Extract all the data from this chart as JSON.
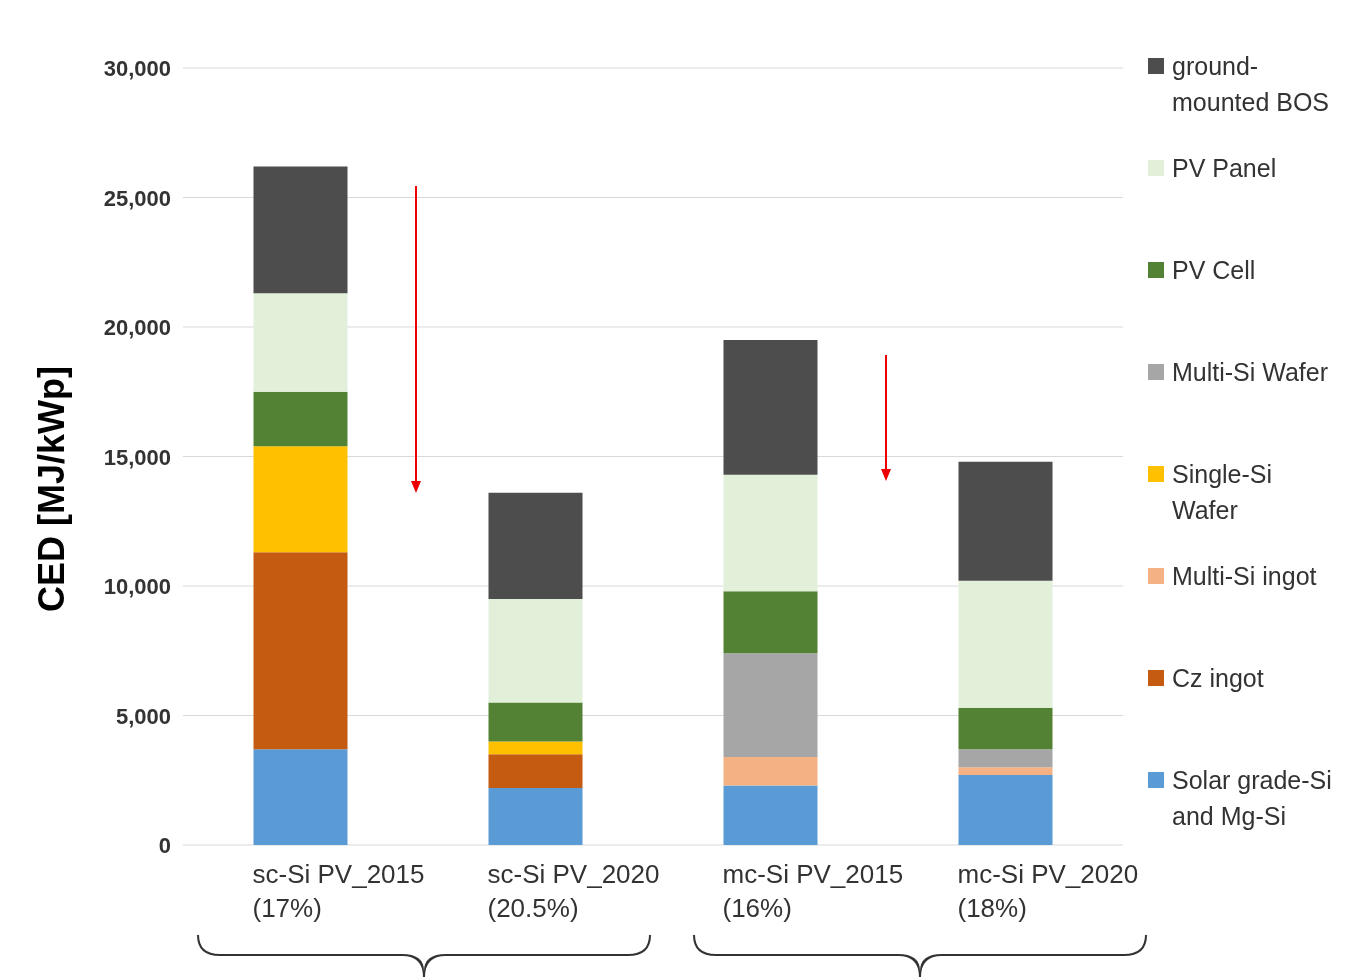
{
  "chart_data": {
    "type": "bar",
    "stacked": true,
    "ylabel": "CED [MJ/kWp]",
    "categories": [
      "sc-Si PV_2015 (17%)",
      "sc-Si PV_2020 (20.5%)",
      "mc-Si PV_2015 (16%)",
      "mc-Si PV_2020 (18%)"
    ],
    "series": [
      {
        "name": "Solar grade-Si and Mg-Si",
        "color": "#5b9bd5",
        "values": [
          3700,
          2200,
          2300,
          2700
        ]
      },
      {
        "name": "Cz ingot",
        "color": "#c55a11",
        "values": [
          7600,
          1300,
          0,
          0
        ]
      },
      {
        "name": "Multi-Si ingot",
        "color": "#f4b183",
        "values": [
          0,
          0,
          1100,
          300
        ]
      },
      {
        "name": "Single-Si Wafer",
        "color": "#ffc000",
        "values": [
          4100,
          500,
          0,
          0
        ]
      },
      {
        "name": "Multi-Si Wafer",
        "color": "#a6a6a6",
        "values": [
          0,
          0,
          4000,
          700
        ]
      },
      {
        "name": "PV Cell",
        "color": "#548235",
        "values": [
          2100,
          1500,
          2400,
          1600
        ]
      },
      {
        "name": "PV Panel",
        "color": "#e2efd9",
        "values": [
          3800,
          4000,
          4500,
          4900
        ]
      },
      {
        "name": "ground-mounted BOS",
        "color": "#4d4d4d",
        "values": [
          4900,
          4100,
          5200,
          4600
        ]
      }
    ],
    "ylim": [
      0,
      30000
    ],
    "yticks": [
      0,
      {
        "value": 5000,
        "label": "5,000"
      },
      {
        "value": 10000,
        "label": "10,000"
      },
      {
        "value": 15000,
        "label": "15,000"
      },
      {
        "value": 20000,
        "label": "20,000"
      },
      {
        "value": 25000,
        "label": "25,000"
      },
      {
        "value": 30000,
        "label": "30,000"
      }
    ],
    "grid": "y",
    "legend": "right"
  }
}
